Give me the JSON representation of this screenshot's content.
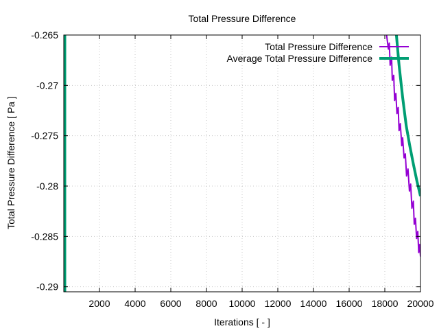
{
  "chart_data": {
    "type": "line",
    "title": "Total Pressure Difference",
    "xlabel": "Iterations [ - ]",
    "ylabel": "Total Pressure Difference [ Pa ]",
    "xlim": [
      0,
      20000
    ],
    "ylim": [
      -0.2905,
      -0.265
    ],
    "x_ticks": [
      2000,
      4000,
      6000,
      8000,
      10000,
      12000,
      14000,
      16000,
      18000,
      20000
    ],
    "x_tick_labels": [
      "2000",
      "4000",
      "6000",
      "8000",
      "10000",
      "12000",
      "14000",
      "16000",
      "18000",
      "20000"
    ],
    "y_ticks": [
      -0.265,
      -0.27,
      -0.275,
      -0.28,
      -0.285,
      -0.29
    ],
    "y_tick_labels": [
      "-0.265",
      "-0.27",
      "-0.275",
      "-0.28",
      "-0.285",
      "-0.29"
    ],
    "grid": true,
    "legend_position": "top-right",
    "series": [
      {
        "name": "Total Pressure Difference",
        "color": "#9400d3",
        "x": [
          18100,
          18200,
          18250,
          18300,
          18380,
          18420,
          18500,
          18550,
          18620,
          18680,
          18750,
          18800,
          18870,
          18950,
          19000,
          19080,
          19150,
          19220,
          19300,
          19380,
          19450,
          19520,
          19600,
          19650,
          19720,
          19780,
          19850,
          19900,
          19950,
          20000
        ],
        "y": [
          -0.265,
          -0.2664,
          -0.2658,
          -0.268,
          -0.2672,
          -0.2695,
          -0.269,
          -0.2715,
          -0.2708,
          -0.2728,
          -0.2722,
          -0.2745,
          -0.2738,
          -0.276,
          -0.2752,
          -0.2772,
          -0.2768,
          -0.279,
          -0.2783,
          -0.2805,
          -0.2798,
          -0.2822,
          -0.2815,
          -0.2838,
          -0.2832,
          -0.2852,
          -0.2845,
          -0.2866,
          -0.2858,
          -0.287
        ]
      },
      {
        "name": "Average Total Pressure Difference",
        "color": "#009e73",
        "x": [
          18650,
          18800,
          19000,
          19200,
          19400,
          19600,
          19800,
          20000
        ],
        "y": [
          -0.265,
          -0.268,
          -0.2712,
          -0.274,
          -0.276,
          -0.2778,
          -0.2795,
          -0.281
        ]
      }
    ],
    "vertical_line": {
      "x": 0,
      "color": "#009e73"
    }
  }
}
